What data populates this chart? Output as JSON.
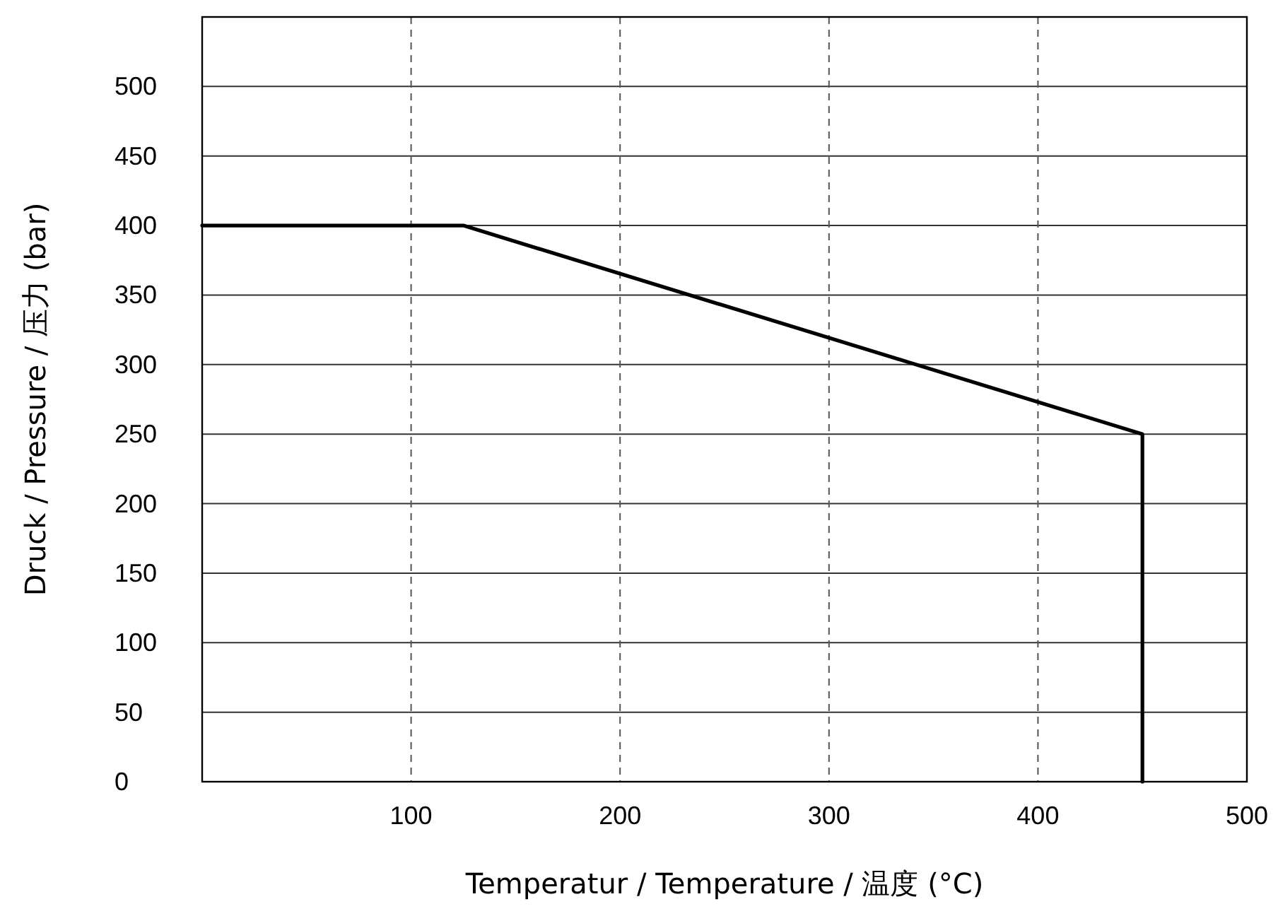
{
  "chart_data": {
    "type": "line",
    "xlabel": "Temperatur / Temperature / 温度 (°C)",
    "ylabel": "Druck / Pressure / 压力 (bar)",
    "x": [
      0,
      125,
      450,
      450
    ],
    "series": [
      {
        "color": "#000000",
        "values": [
          400,
          400,
          250,
          0
        ]
      }
    ],
    "xlim": [
      0,
      500
    ],
    "ylim": [
      0,
      550
    ],
    "xticks": [
      100,
      200,
      300,
      400,
      500
    ],
    "yticks": [
      0,
      50,
      100,
      150,
      200,
      250,
      300,
      350,
      400,
      450,
      500
    ],
    "grid": true,
    "line_style": "solid"
  }
}
